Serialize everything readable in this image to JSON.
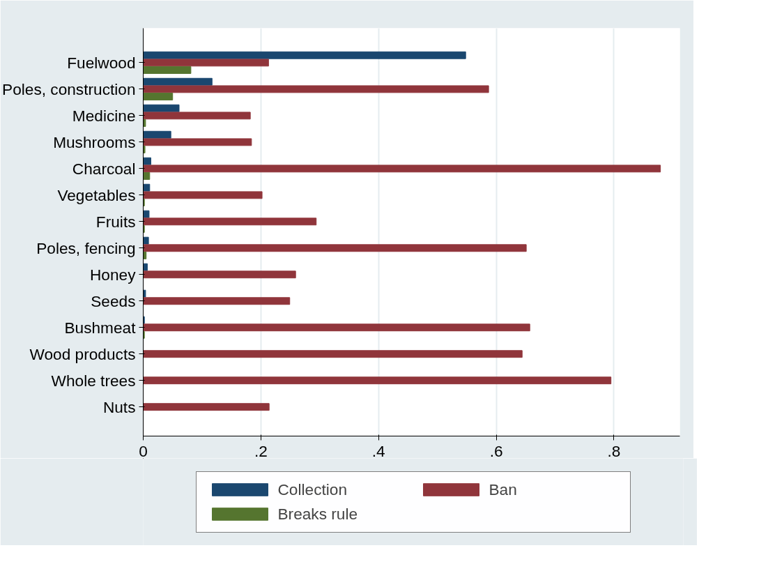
{
  "chart_data": {
    "type": "bar",
    "orientation": "horizontal",
    "categories": [
      "Fuelwood",
      "Poles, construction",
      "Medicine",
      "Mushrooms",
      "Charcoal",
      "Vegetables",
      "Fruits",
      "Poles, fencing",
      "Honey",
      "Seeds",
      "Bushmeat",
      "Wood products",
      "Whole trees",
      "Nuts"
    ],
    "series": [
      {
        "name": "Collection",
        "color": "#1a476f",
        "values": [
          0.548,
          0.117,
          0.061,
          0.047,
          0.013,
          0.011,
          0.01,
          0.009,
          0.007,
          0.004,
          0.002,
          0,
          0,
          0
        ]
      },
      {
        "name": "Ban",
        "color": "#90353b",
        "values": [
          0.213,
          0.587,
          0.182,
          0.184,
          0.879,
          0.202,
          0.294,
          0.651,
          0.259,
          0.249,
          0.657,
          0.644,
          0.795,
          0.214
        ]
      },
      {
        "name": "Breaks rule",
        "color": "#55752f",
        "values": [
          0.081,
          0.05,
          0.004,
          0.003,
          0.011,
          0.002,
          0.002,
          0.005,
          0,
          0,
          0.002,
          0,
          0,
          0
        ]
      }
    ],
    "xlim": [
      0,
      0.912
    ],
    "xticks": [
      0,
      {
        "value": 0.2,
        "label": ".2"
      },
      {
        "value": 0.4,
        "label": ".4"
      },
      {
        "value": 0.6,
        "label": ".6"
      },
      {
        "value": 0.8,
        "label": ".8"
      }
    ],
    "grid": "x",
    "legend": "bottom"
  }
}
